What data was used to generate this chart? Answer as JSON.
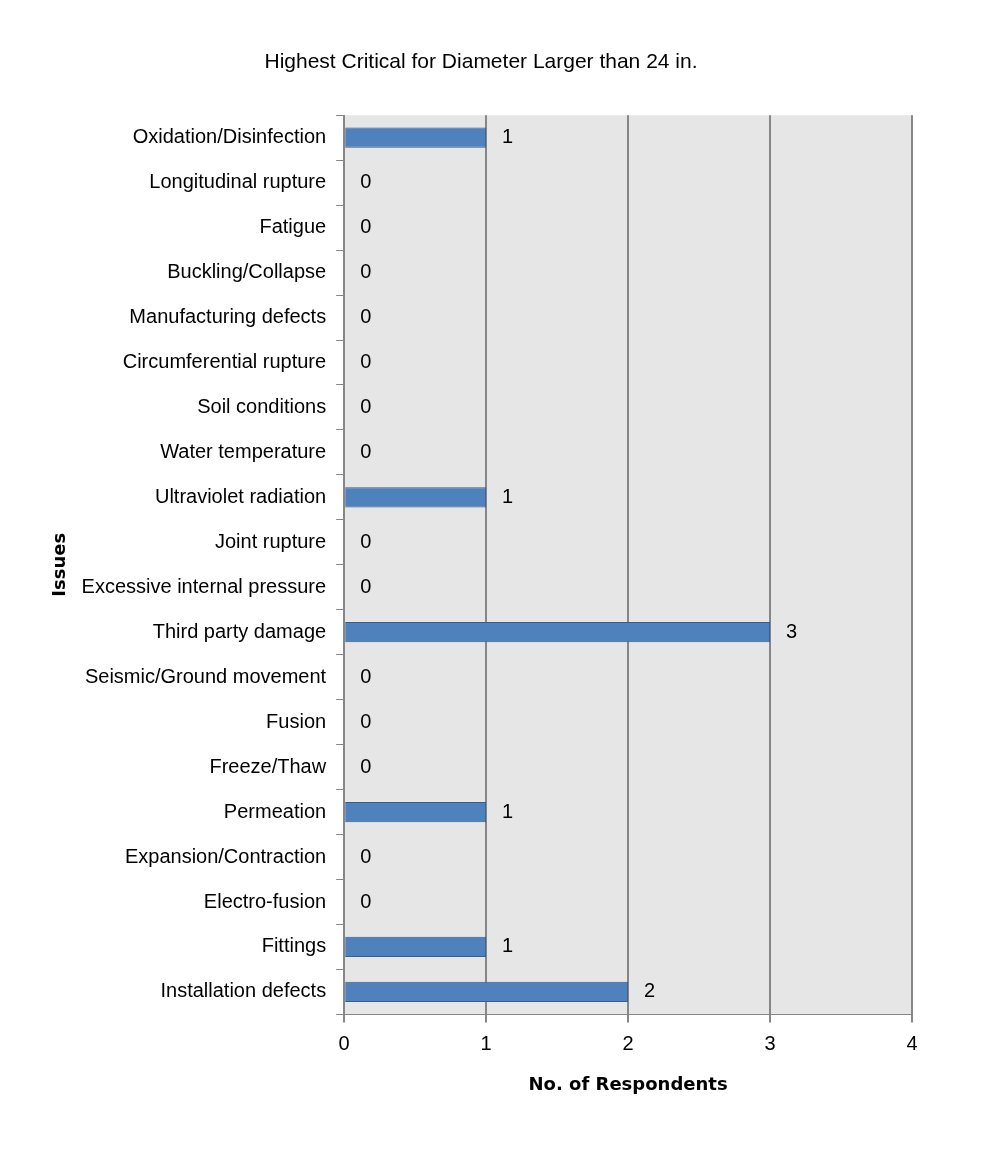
{
  "chart_data": {
    "type": "bar",
    "orientation": "horizontal",
    "title": "Highest Critical for Diameter Larger than 24 in.",
    "xlabel": "No. of Respondents",
    "ylabel": "Issues",
    "categories": [
      "Oxidation/Disinfection",
      "Longitudinal rupture",
      "Fatigue",
      "Buckling/Collapse",
      "Manufacturing defects",
      "Circumferential rupture",
      "Soil conditions",
      "Water temperature",
      "Ultraviolet radiation",
      "Joint rupture",
      "Excessive internal pressure",
      "Third party damage",
      "Seismic/Ground movement",
      "Fusion",
      "Freeze/Thaw",
      "Permeation",
      "Expansion/Contraction",
      "Electro-fusion",
      "Fittings",
      "Installation defects"
    ],
    "values": [
      1,
      0,
      0,
      0,
      0,
      0,
      0,
      0,
      1,
      0,
      0,
      3,
      0,
      0,
      0,
      1,
      0,
      0,
      1,
      2
    ],
    "color": "#4f81bd",
    "xlim": [
      0,
      4
    ],
    "xticks": [
      0,
      1,
      2,
      3,
      4
    ],
    "grid": "x",
    "data_labels": true
  }
}
